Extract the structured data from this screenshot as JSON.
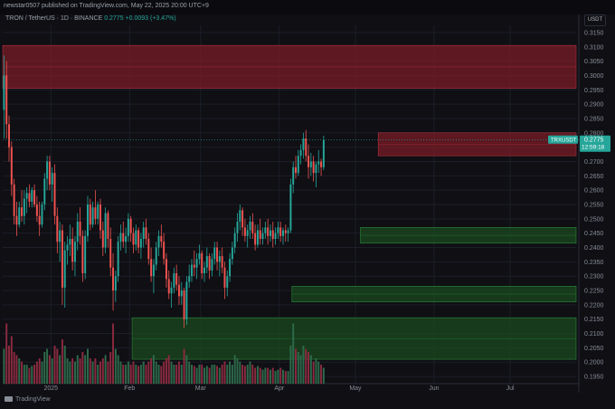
{
  "header": {
    "published": "newstar0507 published on TradingView.com, May 22, 2025 20:00 UTC+9",
    "symbol_line": "TRON / TetherUS · 1D · BINANCE",
    "last_price": "0.2775",
    "change": "+0.0093 (+3.47%)"
  },
  "price_scale": {
    "currency": "USDT",
    "tag_symbol": "TRXUSDT",
    "tag_price": "0.2775",
    "tag_countdown": "12:59:18"
  },
  "watermark": {
    "text": "TradingView"
  },
  "colors": {
    "background": "#0f0f14",
    "grid": "#1c1f28",
    "up": "#26a69a",
    "down": "#ef5350",
    "resistance_zone": "#7a1c26",
    "support_zone": "#1a4a1e",
    "volume_up": "#2d6a4a",
    "volume_down": "#8a2a3f"
  },
  "chart_data": {
    "type": "candlestick",
    "y_ticks": [
      "0.3150",
      "0.3100",
      "0.3050",
      "0.3000",
      "0.2950",
      "0.2900",
      "0.2850",
      "0.2800",
      "0.2750",
      "0.2700",
      "0.2650",
      "0.2600",
      "0.2550",
      "0.2500",
      "0.2450",
      "0.2400",
      "0.2350",
      "0.2300",
      "0.2250",
      "0.2200",
      "0.2150",
      "0.2100",
      "0.2050",
      "0.2000",
      "0.1950"
    ],
    "ylim": [
      0.1925,
      0.3175
    ],
    "x_ticks": [
      "2025",
      "Feb",
      "Mar",
      "Apr",
      "May",
      "Jun",
      "Jul"
    ],
    "x_tick_days": [
      19,
      50,
      78,
      109,
      139,
      170,
      200
    ],
    "x_day_range": [
      0,
      226
    ],
    "zones": [
      {
        "kind": "resistance",
        "y_low": 0.2955,
        "y_high": 0.3105,
        "x_start_day": 0
      },
      {
        "kind": "resistance",
        "y_low": 0.272,
        "y_high": 0.28,
        "x_start_day": 148
      },
      {
        "kind": "support",
        "y_low": 0.2415,
        "y_high": 0.247,
        "x_start_day": 141
      },
      {
        "kind": "support",
        "y_low": 0.221,
        "y_high": 0.2265,
        "x_start_day": 114
      },
      {
        "kind": "support",
        "y_low": 0.201,
        "y_high": 0.2155,
        "x_start_day": 51
      }
    ],
    "ohlc": [
      [
        0.288,
        0.307,
        0.278,
        0.3
      ],
      [
        0.3,
        0.305,
        0.278,
        0.283
      ],
      [
        0.283,
        0.286,
        0.27,
        0.275
      ],
      [
        0.275,
        0.277,
        0.258,
        0.262
      ],
      [
        0.262,
        0.264,
        0.248,
        0.251
      ],
      [
        0.251,
        0.256,
        0.244,
        0.248
      ],
      [
        0.248,
        0.256,
        0.247,
        0.254
      ],
      [
        0.254,
        0.26,
        0.249,
        0.251
      ],
      [
        0.251,
        0.26,
        0.248,
        0.257
      ],
      [
        0.257,
        0.261,
        0.252,
        0.259
      ],
      [
        0.259,
        0.262,
        0.254,
        0.256
      ],
      [
        0.256,
        0.261,
        0.254,
        0.26
      ],
      [
        0.26,
        0.262,
        0.254,
        0.255
      ],
      [
        0.255,
        0.258,
        0.249,
        0.251
      ],
      [
        0.251,
        0.256,
        0.244,
        0.248
      ],
      [
        0.248,
        0.256,
        0.247,
        0.255
      ],
      [
        0.255,
        0.266,
        0.253,
        0.264
      ],
      [
        0.264,
        0.272,
        0.26,
        0.27
      ],
      [
        0.27,
        0.272,
        0.26,
        0.262
      ],
      [
        0.262,
        0.268,
        0.256,
        0.266
      ],
      [
        0.266,
        0.269,
        0.248,
        0.251
      ],
      [
        0.251,
        0.254,
        0.238,
        0.242
      ],
      [
        0.242,
        0.249,
        0.235,
        0.246
      ],
      [
        0.246,
        0.248,
        0.22,
        0.226
      ],
      [
        0.226,
        0.242,
        0.219,
        0.239
      ],
      [
        0.239,
        0.244,
        0.234,
        0.241
      ],
      [
        0.241,
        0.248,
        0.237,
        0.243
      ],
      [
        0.243,
        0.247,
        0.232,
        0.235
      ],
      [
        0.235,
        0.244,
        0.23,
        0.242
      ],
      [
        0.242,
        0.252,
        0.239,
        0.249
      ],
      [
        0.249,
        0.254,
        0.241,
        0.244
      ],
      [
        0.244,
        0.246,
        0.228,
        0.231
      ],
      [
        0.231,
        0.246,
        0.229,
        0.244
      ],
      [
        0.244,
        0.258,
        0.242,
        0.255
      ],
      [
        0.255,
        0.257,
        0.246,
        0.248
      ],
      [
        0.248,
        0.256,
        0.247,
        0.254
      ],
      [
        0.254,
        0.26,
        0.248,
        0.25
      ],
      [
        0.25,
        0.256,
        0.248,
        0.255
      ],
      [
        0.255,
        0.257,
        0.243,
        0.246
      ],
      [
        0.246,
        0.249,
        0.237,
        0.24
      ],
      [
        0.24,
        0.254,
        0.238,
        0.252
      ],
      [
        0.252,
        0.253,
        0.24,
        0.243
      ],
      [
        0.243,
        0.247,
        0.23,
        0.233
      ],
      [
        0.233,
        0.238,
        0.218,
        0.225
      ],
      [
        0.225,
        0.232,
        0.221,
        0.23
      ],
      [
        0.23,
        0.244,
        0.228,
        0.242
      ],
      [
        0.242,
        0.248,
        0.239,
        0.245
      ],
      [
        0.245,
        0.249,
        0.24,
        0.242
      ],
      [
        0.242,
        0.247,
        0.238,
        0.244
      ],
      [
        0.244,
        0.252,
        0.242,
        0.25
      ],
      [
        0.25,
        0.251,
        0.242,
        0.245
      ],
      [
        0.245,
        0.247,
        0.238,
        0.241
      ],
      [
        0.241,
        0.248,
        0.239,
        0.246
      ],
      [
        0.246,
        0.247,
        0.238,
        0.24
      ],
      [
        0.24,
        0.245,
        0.236,
        0.243
      ],
      [
        0.243,
        0.249,
        0.24,
        0.247
      ],
      [
        0.247,
        0.25,
        0.241,
        0.243
      ],
      [
        0.243,
        0.245,
        0.234,
        0.236
      ],
      [
        0.236,
        0.24,
        0.228,
        0.23
      ],
      [
        0.23,
        0.236,
        0.224,
        0.234
      ],
      [
        0.234,
        0.242,
        0.232,
        0.24
      ],
      [
        0.24,
        0.246,
        0.237,
        0.244
      ],
      [
        0.244,
        0.248,
        0.24,
        0.242
      ],
      [
        0.242,
        0.245,
        0.234,
        0.236
      ],
      [
        0.236,
        0.238,
        0.226,
        0.229
      ],
      [
        0.229,
        0.232,
        0.222,
        0.224
      ],
      [
        0.224,
        0.228,
        0.219,
        0.226
      ],
      [
        0.226,
        0.233,
        0.224,
        0.231
      ],
      [
        0.231,
        0.234,
        0.225,
        0.227
      ],
      [
        0.227,
        0.23,
        0.22,
        0.223
      ],
      [
        0.223,
        0.228,
        0.22,
        0.225
      ],
      [
        0.225,
        0.226,
        0.212,
        0.215
      ],
      [
        0.215,
        0.23,
        0.213,
        0.228
      ],
      [
        0.228,
        0.234,
        0.226,
        0.23
      ],
      [
        0.23,
        0.236,
        0.228,
        0.234
      ],
      [
        0.234,
        0.239,
        0.23,
        0.233
      ],
      [
        0.233,
        0.238,
        0.229,
        0.236
      ],
      [
        0.236,
        0.241,
        0.234,
        0.238
      ],
      [
        0.238,
        0.239,
        0.229,
        0.231
      ],
      [
        0.231,
        0.235,
        0.228,
        0.233
      ],
      [
        0.233,
        0.24,
        0.231,
        0.237
      ],
      [
        0.237,
        0.238,
        0.229,
        0.232
      ],
      [
        0.232,
        0.238,
        0.23,
        0.236
      ],
      [
        0.236,
        0.242,
        0.234,
        0.24
      ],
      [
        0.24,
        0.242,
        0.232,
        0.235
      ],
      [
        0.235,
        0.239,
        0.23,
        0.237
      ],
      [
        0.237,
        0.24,
        0.231,
        0.233
      ],
      [
        0.233,
        0.235,
        0.222,
        0.226
      ],
      [
        0.226,
        0.232,
        0.223,
        0.23
      ],
      [
        0.23,
        0.238,
        0.228,
        0.236
      ],
      [
        0.236,
        0.242,
        0.234,
        0.24
      ],
      [
        0.24,
        0.247,
        0.238,
        0.245
      ],
      [
        0.245,
        0.252,
        0.242,
        0.249
      ],
      [
        0.249,
        0.255,
        0.246,
        0.253
      ],
      [
        0.253,
        0.254,
        0.244,
        0.247
      ],
      [
        0.247,
        0.25,
        0.242,
        0.244
      ],
      [
        0.244,
        0.248,
        0.24,
        0.246
      ],
      [
        0.246,
        0.251,
        0.243,
        0.249
      ],
      [
        0.249,
        0.252,
        0.243,
        0.245
      ],
      [
        0.245,
        0.248,
        0.239,
        0.241
      ],
      [
        0.241,
        0.248,
        0.24,
        0.246
      ],
      [
        0.246,
        0.25,
        0.241,
        0.243
      ],
      [
        0.243,
        0.247,
        0.241,
        0.245
      ],
      [
        0.245,
        0.249,
        0.243,
        0.247
      ],
      [
        0.247,
        0.25,
        0.241,
        0.244
      ],
      [
        0.244,
        0.248,
        0.242,
        0.246
      ],
      [
        0.246,
        0.249,
        0.24,
        0.243
      ],
      [
        0.243,
        0.247,
        0.241,
        0.245
      ],
      [
        0.245,
        0.249,
        0.243,
        0.247
      ],
      [
        0.247,
        0.249,
        0.242,
        0.244
      ],
      [
        0.244,
        0.247,
        0.241,
        0.246
      ],
      [
        0.246,
        0.248,
        0.242,
        0.245
      ],
      [
        0.245,
        0.247,
        0.242,
        0.246
      ],
      [
        0.246,
        0.264,
        0.245,
        0.262
      ],
      [
        0.262,
        0.27,
        0.259,
        0.268
      ],
      [
        0.268,
        0.272,
        0.264,
        0.266
      ],
      [
        0.266,
        0.274,
        0.265,
        0.272
      ],
      [
        0.272,
        0.276,
        0.269,
        0.274
      ],
      [
        0.274,
        0.28,
        0.271,
        0.278
      ],
      [
        0.278,
        0.281,
        0.27,
        0.272
      ],
      [
        0.272,
        0.276,
        0.264,
        0.268
      ],
      [
        0.268,
        0.273,
        0.265,
        0.27
      ],
      [
        0.27,
        0.272,
        0.263,
        0.266
      ],
      [
        0.266,
        0.27,
        0.261,
        0.269
      ],
      [
        0.269,
        0.274,
        0.266,
        0.27
      ],
      [
        0.27,
        0.271,
        0.265,
        0.268
      ],
      [
        0.268,
        0.279,
        0.267,
        0.2775
      ]
    ],
    "volume": [
      0.55,
      0.95,
      0.6,
      0.75,
      0.5,
      0.45,
      0.4,
      0.35,
      0.3,
      0.3,
      0.25,
      0.28,
      0.3,
      0.35,
      0.4,
      0.35,
      0.5,
      0.55,
      0.45,
      0.4,
      0.6,
      0.55,
      0.45,
      0.7,
      0.6,
      0.4,
      0.35,
      0.4,
      0.35,
      0.45,
      0.4,
      0.5,
      0.45,
      0.55,
      0.4,
      0.35,
      0.4,
      0.3,
      0.35,
      0.4,
      0.45,
      0.35,
      0.5,
      0.95,
      0.55,
      0.45,
      0.35,
      0.3,
      0.3,
      0.35,
      0.3,
      0.35,
      0.3,
      0.28,
      0.3,
      0.35,
      0.3,
      0.35,
      0.4,
      0.45,
      0.35,
      0.3,
      0.28,
      0.35,
      0.4,
      0.45,
      0.35,
      0.3,
      0.3,
      0.35,
      0.3,
      0.55,
      0.45,
      0.35,
      0.3,
      0.28,
      0.25,
      0.3,
      0.3,
      0.25,
      0.28,
      0.25,
      0.3,
      0.3,
      0.28,
      0.25,
      0.3,
      0.35,
      0.3,
      0.35,
      0.3,
      0.45,
      0.4,
      0.35,
      0.3,
      0.28,
      0.3,
      0.35,
      0.3,
      0.25,
      0.28,
      0.25,
      0.22,
      0.25,
      0.25,
      0.22,
      0.25,
      0.2,
      0.22,
      0.25,
      0.22,
      0.2,
      0.2,
      0.6,
      0.95,
      0.55,
      0.5,
      0.45,
      0.6,
      0.55,
      0.5,
      0.45,
      0.35,
      0.4,
      0.35,
      0.3,
      0.25
    ]
  }
}
